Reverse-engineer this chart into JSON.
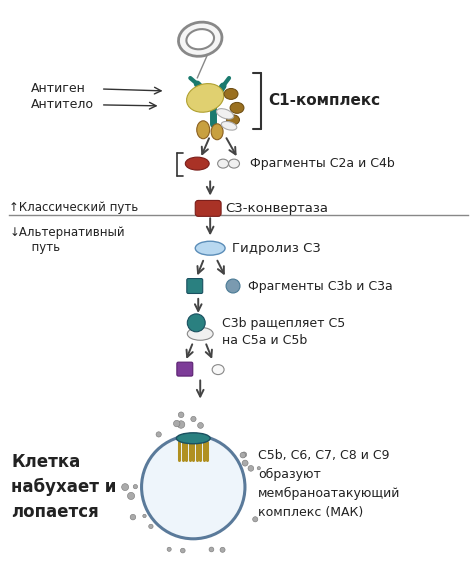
{
  "bg_color": "#ffffff",
  "fig_width": 4.77,
  "fig_height": 5.79,
  "dpi": 100,
  "labels": {
    "antigen": "Антиген",
    "antibody": "Антитело",
    "c1_complex": "С1-комплекс",
    "fragments_c2a_c4b": "Фрагменты С2а и С4b",
    "classical_path": "↑Классический путь",
    "c3_convertase": "С3-конвертаза",
    "alt_path": "↓Альтернативный\n      путь",
    "hydrolysis_c3": "Гидролиз С3",
    "fragments_c3b_c3a": "Фрагменты С3b и С3а",
    "c3b_cleaves": "С3b ращепляет С5\nна С5а и С5b",
    "cell_bursts": "Клетка\nнабухает и\nлопается",
    "mac": "C5b, C6, C7, C8 и C9\nобразуют\nмембраноатакующий\nкомплекс (МАК)"
  },
  "colors": {
    "teal_dark": "#1a7a6e",
    "teal_med": "#2a8a7e",
    "gold": "#c8a040",
    "gold_dark": "#8b6020",
    "gold_bright": "#e8c840",
    "crimson": "#a93226",
    "crimson_dark": "#7a1e1a",
    "purple": "#7d3c98",
    "purple_dark": "#5a2070",
    "slate": "#5b8db8",
    "pale_blue": "#b8d8f0",
    "light_gray": "#e8e8e8",
    "mid_gray": "#999999",
    "dark_gray": "#555555",
    "black": "#222222",
    "white": "#ffffff",
    "cell_fill": "#e8f4f8",
    "cell_edge": "#5a7a9a",
    "dot_gray": "#999999",
    "brown_dark": "#7a5010"
  }
}
